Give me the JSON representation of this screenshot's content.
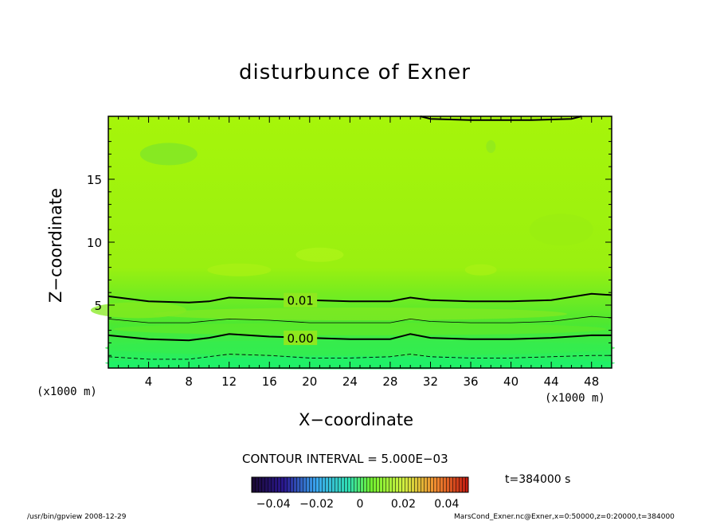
{
  "title": "disturbunce of Exner",
  "xlabel": "X−coordinate",
  "ylabel": "Z−coordinate",
  "x_unit_left": "(x1000 m)",
  "x_unit_right": "(x1000 m)",
  "contour_interval": "CONTOUR INTERVAL = 5.000E−03",
  "time_label": "t=384000 s",
  "footer_left": "/usr/bin/gpview  2008-12-29",
  "footer_right": "MarsCond_Exner.nc@Exner,x=0:50000,z=0:20000,t=384000",
  "chart_data": {
    "type": "heatmap",
    "title": "disturbunce of Exner",
    "xlabel": "X-coordinate",
    "ylabel": "Z-coordinate",
    "xlim": [
      0,
      50
    ],
    "ylim": [
      0,
      20
    ],
    "x_ticks": [
      4,
      8,
      12,
      16,
      20,
      24,
      28,
      32,
      36,
      40,
      44,
      48
    ],
    "y_ticks": [
      5,
      10,
      15
    ],
    "contour_interval": 0.005,
    "colorbar": {
      "ticks": [
        -0.04,
        -0.02,
        0,
        0.02,
        0.04
      ],
      "tick_labels": [
        "−0.04",
        "−0.02",
        "0",
        "0.02",
        "0.04"
      ],
      "range": [
        -0.05,
        0.05
      ]
    },
    "colors": {
      "top": "#a6f50a",
      "mid": "#9af010",
      "low": "#4ee830",
      "bottom": "#1ef06a"
    },
    "contours": [
      {
        "level": 0.01,
        "label": "0.01",
        "style": "solid-thick",
        "points": [
          [
            0,
            5.7
          ],
          [
            4,
            5.3
          ],
          [
            8,
            5.2
          ],
          [
            10,
            5.3
          ],
          [
            12,
            5.6
          ],
          [
            16,
            5.5
          ],
          [
            20,
            5.4
          ],
          [
            24,
            5.3
          ],
          [
            28,
            5.3
          ],
          [
            30,
            5.6
          ],
          [
            32,
            5.4
          ],
          [
            36,
            5.3
          ],
          [
            40,
            5.3
          ],
          [
            44,
            5.4
          ],
          [
            48,
            5.9
          ],
          [
            50,
            5.8
          ]
        ]
      },
      {
        "level": 0.005,
        "label": "",
        "style": "solid-thin",
        "points": [
          [
            0,
            3.9
          ],
          [
            4,
            3.6
          ],
          [
            8,
            3.6
          ],
          [
            12,
            3.9
          ],
          [
            16,
            3.8
          ],
          [
            20,
            3.6
          ],
          [
            24,
            3.6
          ],
          [
            28,
            3.6
          ],
          [
            30,
            3.9
          ],
          [
            32,
            3.7
          ],
          [
            36,
            3.6
          ],
          [
            40,
            3.6
          ],
          [
            44,
            3.7
          ],
          [
            48,
            4.1
          ],
          [
            50,
            4.0
          ]
        ]
      },
      {
        "level": 0.0,
        "label": "0.00",
        "style": "solid-thick",
        "points": [
          [
            0,
            2.6
          ],
          [
            4,
            2.3
          ],
          [
            8,
            2.2
          ],
          [
            10,
            2.4
          ],
          [
            12,
            2.7
          ],
          [
            16,
            2.5
          ],
          [
            20,
            2.4
          ],
          [
            24,
            2.3
          ],
          [
            28,
            2.3
          ],
          [
            30,
            2.7
          ],
          [
            32,
            2.4
          ],
          [
            36,
            2.3
          ],
          [
            40,
            2.3
          ],
          [
            44,
            2.4
          ],
          [
            48,
            2.6
          ],
          [
            50,
            2.6
          ]
        ]
      },
      {
        "level": -0.005,
        "label": "",
        "style": "dashed",
        "points": [
          [
            0,
            0.9
          ],
          [
            4,
            0.7
          ],
          [
            8,
            0.7
          ],
          [
            12,
            1.1
          ],
          [
            16,
            1.0
          ],
          [
            20,
            0.8
          ],
          [
            24,
            0.8
          ],
          [
            28,
            0.9
          ],
          [
            30,
            1.1
          ],
          [
            32,
            0.9
          ],
          [
            36,
            0.8
          ],
          [
            40,
            0.8
          ],
          [
            44,
            0.9
          ],
          [
            48,
            1.0
          ],
          [
            50,
            1.0
          ]
        ]
      },
      {
        "level": 0.015,
        "label": "",
        "style": "solid-thick",
        "points": [
          [
            31,
            20
          ],
          [
            32,
            19.8
          ],
          [
            36,
            19.7
          ],
          [
            42,
            19.7
          ],
          [
            46,
            19.8
          ],
          [
            47,
            20
          ]
        ]
      }
    ]
  }
}
